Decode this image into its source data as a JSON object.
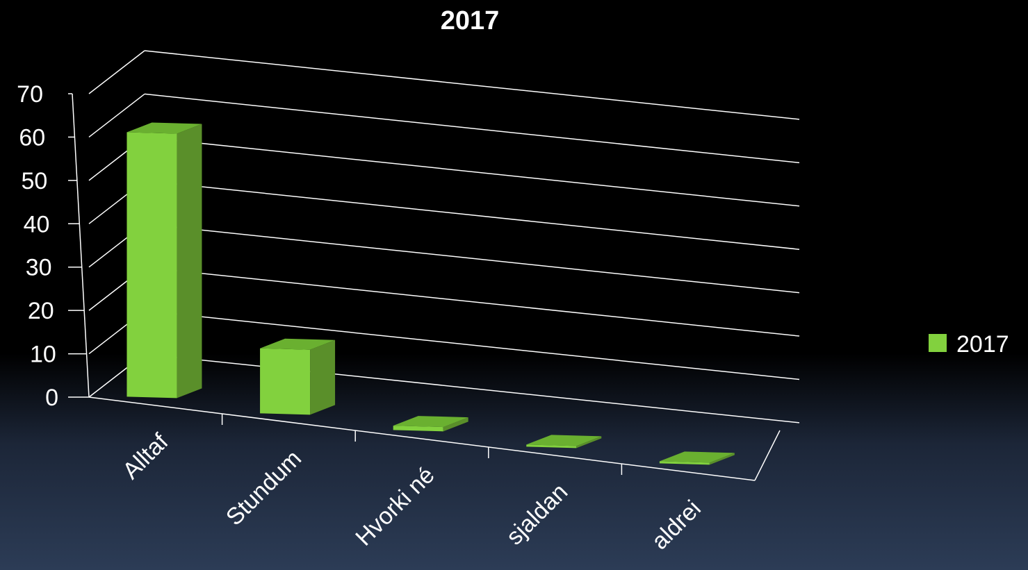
{
  "chart_data": {
    "type": "bar",
    "title": "2017",
    "categories": [
      "Alltaf",
      "Stundum",
      "Hvorki né",
      "sjaldan",
      "aldrei"
    ],
    "series": [
      {
        "name": "2017",
        "values": [
          61,
          15,
          1,
          0,
          0
        ]
      }
    ],
    "ylim": [
      0,
      70
    ],
    "yticks": [
      0,
      10,
      20,
      30,
      40,
      50,
      60,
      70
    ],
    "grid": true,
    "legend": "right",
    "view": "3d"
  },
  "colors": {
    "bar_front": "#82d13e",
    "bar_top": "#6ab030",
    "bar_side": "#5a8f2a",
    "grid": "#ffffff"
  }
}
